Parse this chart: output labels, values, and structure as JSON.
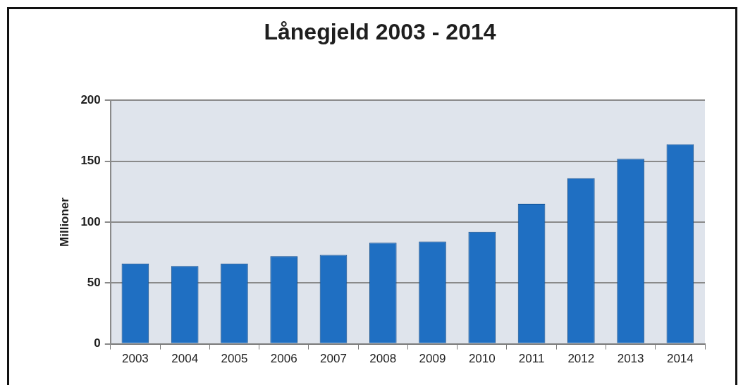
{
  "chart_data": {
    "type": "bar",
    "title": "Lånegjeld 2003 - 2014",
    "ylabel": "Millioner",
    "categories": [
      "2003",
      "2004",
      "2005",
      "2006",
      "2007",
      "2008",
      "2009",
      "2010",
      "2011",
      "2012",
      "2013",
      "2014"
    ],
    "values": [
      66,
      64,
      66,
      72,
      73,
      83,
      84,
      92,
      115,
      136,
      152,
      164
    ],
    "color": "#1f6fc2",
    "ylim": [
      0,
      200
    ],
    "yticks": [
      0,
      50,
      100,
      150,
      200
    ],
    "grid": "y"
  }
}
